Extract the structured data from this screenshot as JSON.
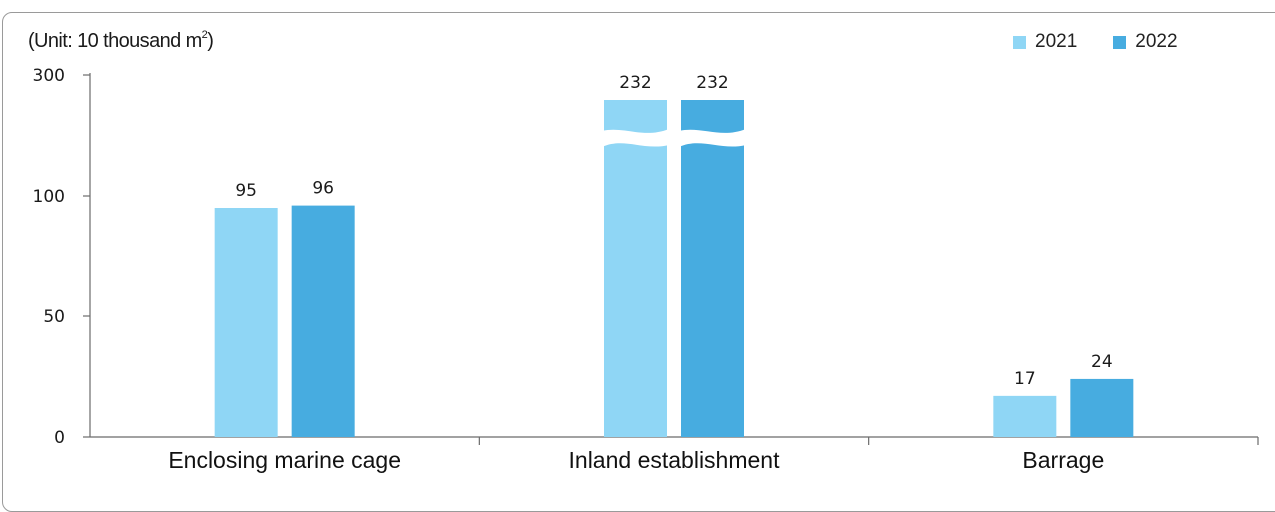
{
  "chart_data": {
    "type": "bar",
    "unit_label": "(Unit: 10 thousand m",
    "unit_superscript": "2",
    "unit_close": ")",
    "categories": [
      "Enclosing marine cage",
      "Inland establishment",
      "Barrage"
    ],
    "series": [
      {
        "name": "2021",
        "color": "#8fd6f5",
        "values": [
          95,
          232,
          17
        ],
        "labels": [
          "95",
          "232",
          "17"
        ]
      },
      {
        "name": "2022",
        "color": "#47ace0",
        "values": [
          96,
          232,
          24
        ],
        "labels": [
          "96",
          "232",
          "24"
        ]
      }
    ],
    "y_ticks": [
      "0",
      "50",
      "100",
      "300"
    ],
    "y_tick_values": [
      0,
      50,
      100,
      300
    ],
    "axis_break": true,
    "ylim": [
      0,
      300
    ]
  }
}
